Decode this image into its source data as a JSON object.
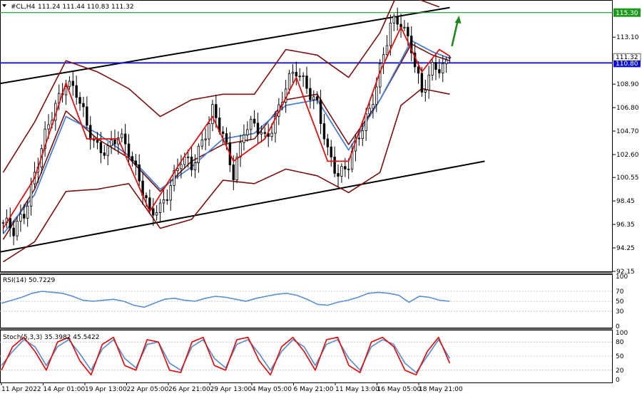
{
  "header": {
    "symbol": "#CL,H4",
    "ohlc": "111.24 111.44 110.83 111.32"
  },
  "colors": {
    "upper_level": "#1f9a1f",
    "lower_level": "#1010dd",
    "bands": "#7a1010",
    "fast_ma": "#dd1111",
    "slow_ma": "#4a7fd0",
    "candles": "#000000",
    "arrow": "#1e8a1e",
    "rsi_line": "#5b8fd0",
    "stoch_main": "#dd1111",
    "stoch_signal": "#5b8fd0"
  },
  "chart_data": [
    {
      "type": "candlestick",
      "title": "#CL,H4",
      "ohlc_last": {
        "open": 111.24,
        "high": 111.44,
        "low": 110.83,
        "close": 111.32
      },
      "y_ticks": [
        92.15,
        94.25,
        96.35,
        98.45,
        100.55,
        102.6,
        104.7,
        106.8,
        108.9,
        113.1
      ],
      "ylim": [
        92.15,
        116.3
      ],
      "x_tick_labels": [
        "11 Apr 2022",
        "14 Apr 01:00",
        "19 Apr 13:00",
        "22 Apr 05:00",
        "26 Apr 21:00",
        "29 Apr 13:00",
        "4 May 05:00",
        "6 May 21:00",
        "11 May 13:00",
        "16 May 05:00",
        "18 May 21:00"
      ],
      "horizontal_levels": [
        {
          "value": 115.3,
          "label": "115.30",
          "color": "green"
        },
        {
          "value": 110.8,
          "label": "110.80",
          "color": "blue"
        }
      ],
      "current_price_label": "111.32",
      "channel_lines": [
        {
          "name": "upper channel",
          "from": {
            "bar": 0,
            "price": 109.0
          },
          "to": {
            "bar": 128,
            "price": 115.75
          }
        },
        {
          "name": "lower channel",
          "from": {
            "bar": 1,
            "price": 94.0
          },
          "to": {
            "bar": 138,
            "price": 102.0
          }
        }
      ],
      "arrow": {
        "direction": "up",
        "from_price": 112.3,
        "to_price": 114.9
      },
      "close_path": [
        [
          0,
          96.5
        ],
        [
          3,
          95.5
        ],
        [
          6,
          97.5
        ],
        [
          9,
          101.0
        ],
        [
          12,
          104.0
        ],
        [
          15,
          107.0
        ],
        [
          18,
          109.4
        ],
        [
          21,
          108.0
        ],
        [
          24,
          105.0
        ],
        [
          27,
          103.5
        ],
        [
          30,
          103.0
        ],
        [
          33,
          104.0
        ],
        [
          36,
          103.2
        ],
        [
          39,
          100.6
        ],
        [
          42,
          97.0
        ],
        [
          45,
          97.8
        ],
        [
          48,
          100.2
        ],
        [
          51,
          102.0
        ],
        [
          54,
          101.4
        ],
        [
          57,
          104.0
        ],
        [
          60,
          106.5
        ],
        [
          63,
          104.0
        ],
        [
          66,
          101.0
        ],
        [
          69,
          105.0
        ],
        [
          72,
          105.0
        ],
        [
          75,
          104.0
        ],
        [
          78,
          106.0
        ],
        [
          81,
          108.5
        ],
        [
          84,
          110.0
        ],
        [
          87,
          109.0
        ],
        [
          90,
          107.0
        ],
        [
          93,
          102.5
        ],
        [
          96,
          101.0
        ],
        [
          99,
          102.0
        ],
        [
          102,
          104.0
        ],
        [
          105,
          106.5
        ],
        [
          108,
          110.5
        ],
        [
          111,
          114.0
        ],
        [
          114,
          114.3
        ],
        [
          117,
          112.5
        ],
        [
          120,
          108.0
        ],
        [
          123,
          110.0
        ],
        [
          126,
          110.7
        ],
        [
          128,
          111.3
        ]
      ],
      "bollinger_mid_path": [
        [
          0,
          95.0
        ],
        [
          9,
          99.5
        ],
        [
          18,
          106.5
        ],
        [
          27,
          104.0
        ],
        [
          36,
          102.3
        ],
        [
          45,
          99.3
        ],
        [
          54,
          102.0
        ],
        [
          63,
          103.5
        ],
        [
          72,
          104.0
        ],
        [
          81,
          107.5
        ],
        [
          90,
          108.0
        ],
        [
          99,
          103.5
        ],
        [
          108,
          107.5
        ],
        [
          117,
          112.5
        ],
        [
          123,
          111.5
        ],
        [
          128,
          111.0
        ]
      ],
      "bollinger_upper_path": [
        [
          0,
          101.0
        ],
        [
          9,
          105.5
        ],
        [
          18,
          111.0
        ],
        [
          27,
          110.0
        ],
        [
          36,
          108.5
        ],
        [
          45,
          106.0
        ],
        [
          54,
          107.5
        ],
        [
          63,
          108.0
        ],
        [
          72,
          108.0
        ],
        [
          81,
          112.0
        ],
        [
          90,
          111.5
        ],
        [
          99,
          109.5
        ],
        [
          108,
          113.5
        ],
        [
          113,
          117.0
        ],
        [
          119,
          116.5
        ],
        [
          125,
          115.8
        ]
      ],
      "bollinger_lower_path": [
        [
          0,
          93.0
        ],
        [
          9,
          94.8
        ],
        [
          18,
          99.3
        ],
        [
          27,
          99.5
        ],
        [
          36,
          100.0
        ],
        [
          45,
          96.0
        ],
        [
          54,
          96.8
        ],
        [
          63,
          100.3
        ],
        [
          72,
          100.0
        ],
        [
          81,
          101.3
        ],
        [
          90,
          100.7
        ],
        [
          99,
          99.2
        ],
        [
          108,
          101.0
        ],
        [
          114,
          107.0
        ],
        [
          120,
          108.5
        ],
        [
          128,
          108.0
        ]
      ],
      "fast_ma_path": [
        [
          0,
          96.0
        ],
        [
          9,
          100.5
        ],
        [
          18,
          109.0
        ],
        [
          24,
          104.0
        ],
        [
          33,
          104.0
        ],
        [
          42,
          97.5
        ],
        [
          51,
          102.0
        ],
        [
          60,
          106.0
        ],
        [
          66,
          102.0
        ],
        [
          75,
          104.0
        ],
        [
          84,
          109.5
        ],
        [
          93,
          102.0
        ],
        [
          99,
          102.0
        ],
        [
          108,
          110.0
        ],
        [
          114,
          114.0
        ],
        [
          120,
          110.0
        ],
        [
          125,
          112.0
        ],
        [
          128,
          111.4
        ]
      ],
      "slow_ma_path": [
        [
          0,
          95.5
        ],
        [
          9,
          99.0
        ],
        [
          18,
          106.0
        ],
        [
          27,
          104.5
        ],
        [
          36,
          102.5
        ],
        [
          45,
          99.5
        ],
        [
          54,
          101.5
        ],
        [
          63,
          104.0
        ],
        [
          72,
          104.5
        ],
        [
          81,
          107.0
        ],
        [
          90,
          107.5
        ],
        [
          99,
          103.0
        ],
        [
          108,
          107.5
        ],
        [
          117,
          112.8
        ],
        [
          123,
          111.8
        ],
        [
          128,
          111.2
        ]
      ]
    },
    {
      "type": "line",
      "title": "RSI(14) 50.7229",
      "y_ticks": [
        0,
        30,
        50,
        70,
        100
      ],
      "ylim": [
        0,
        100
      ],
      "values": [
        46,
        52,
        58,
        66,
        70,
        68,
        66,
        60,
        52,
        50,
        52,
        54,
        50,
        42,
        38,
        46,
        54,
        56,
        52,
        50,
        56,
        60,
        58,
        54,
        50,
        56,
        60,
        64,
        66,
        62,
        54,
        44,
        42,
        48,
        52,
        58,
        66,
        68,
        66,
        62,
        48,
        60,
        58,
        52,
        50
      ]
    },
    {
      "type": "line",
      "title": "Stoch(5,3,3) 35.3982 45.5422",
      "y_ticks": [
        0,
        20,
        50,
        80,
        100
      ],
      "ylim": [
        0,
        100
      ],
      "series": [
        {
          "name": "main",
          "values": [
            20,
            70,
            90,
            60,
            20,
            80,
            90,
            40,
            10,
            75,
            90,
            30,
            20,
            85,
            80,
            20,
            15,
            80,
            90,
            30,
            20,
            85,
            90,
            40,
            10,
            70,
            90,
            60,
            20,
            85,
            90,
            30,
            15,
            80,
            90,
            70,
            20,
            10,
            60,
            90,
            35
          ]
        },
        {
          "name": "signal",
          "values": [
            30,
            60,
            85,
            70,
            30,
            70,
            85,
            55,
            20,
            65,
            85,
            45,
            25,
            75,
            80,
            35,
            20,
            70,
            85,
            45,
            25,
            75,
            85,
            55,
            20,
            60,
            85,
            70,
            30,
            75,
            85,
            45,
            20,
            70,
            85,
            75,
            35,
            15,
            50,
            85,
            45
          ]
        }
      ]
    }
  ]
}
